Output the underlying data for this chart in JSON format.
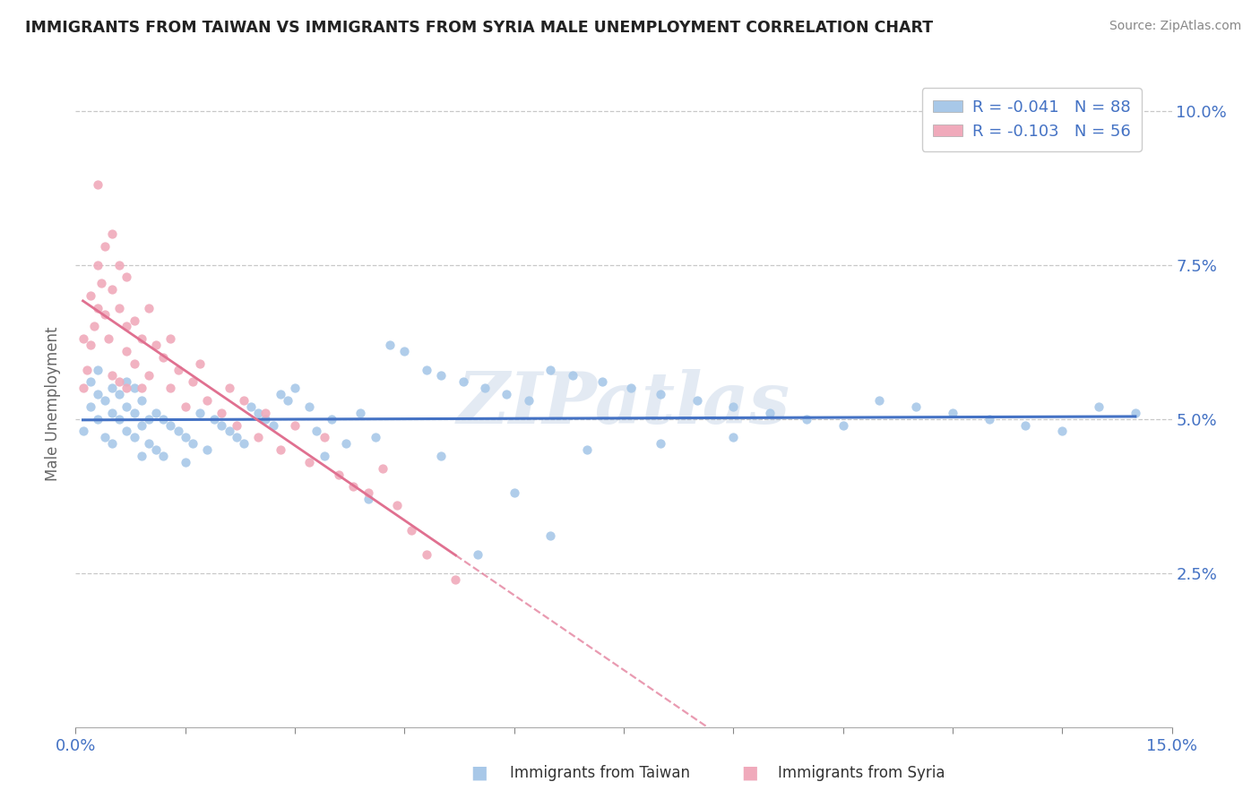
{
  "title": "IMMIGRANTS FROM TAIWAN VS IMMIGRANTS FROM SYRIA MALE UNEMPLOYMENT CORRELATION CHART",
  "source": "Source: ZipAtlas.com",
  "xlabel_taiwan": "Immigrants from Taiwan",
  "xlabel_syria": "Immigrants from Syria",
  "ylabel": "Male Unemployment",
  "xlim": [
    0.0,
    0.15
  ],
  "ylim": [
    0.0,
    0.105
  ],
  "taiwan_R": -0.041,
  "taiwan_N": 88,
  "syria_R": -0.103,
  "syria_N": 56,
  "taiwan_color": "#A8C8E8",
  "syria_color": "#F0AABB",
  "taiwan_line_color": "#4472C4",
  "syria_line_color": "#E07090",
  "watermark": "ZIPatlas",
  "taiwan_x": [
    0.001,
    0.002,
    0.002,
    0.003,
    0.003,
    0.003,
    0.004,
    0.004,
    0.005,
    0.005,
    0.005,
    0.006,
    0.006,
    0.007,
    0.007,
    0.007,
    0.008,
    0.008,
    0.008,
    0.009,
    0.009,
    0.009,
    0.01,
    0.01,
    0.011,
    0.011,
    0.012,
    0.012,
    0.013,
    0.014,
    0.015,
    0.015,
    0.016,
    0.017,
    0.018,
    0.019,
    0.02,
    0.021,
    0.022,
    0.023,
    0.024,
    0.025,
    0.026,
    0.027,
    0.028,
    0.029,
    0.03,
    0.032,
    0.033,
    0.034,
    0.035,
    0.037,
    0.039,
    0.041,
    0.043,
    0.045,
    0.048,
    0.05,
    0.053,
    0.056,
    0.059,
    0.062,
    0.065,
    0.068,
    0.072,
    0.076,
    0.08,
    0.085,
    0.09,
    0.095,
    0.1,
    0.105,
    0.11,
    0.115,
    0.12,
    0.125,
    0.13,
    0.135,
    0.14,
    0.145,
    0.05,
    0.04,
    0.06,
    0.07,
    0.08,
    0.09,
    0.055,
    0.065
  ],
  "taiwan_y": [
    0.048,
    0.052,
    0.056,
    0.05,
    0.054,
    0.058,
    0.047,
    0.053,
    0.046,
    0.051,
    0.055,
    0.05,
    0.054,
    0.048,
    0.052,
    0.056,
    0.047,
    0.051,
    0.055,
    0.049,
    0.053,
    0.044,
    0.05,
    0.046,
    0.051,
    0.045,
    0.05,
    0.044,
    0.049,
    0.048,
    0.043,
    0.047,
    0.046,
    0.051,
    0.045,
    0.05,
    0.049,
    0.048,
    0.047,
    0.046,
    0.052,
    0.051,
    0.05,
    0.049,
    0.054,
    0.053,
    0.055,
    0.052,
    0.048,
    0.044,
    0.05,
    0.046,
    0.051,
    0.047,
    0.062,
    0.061,
    0.058,
    0.057,
    0.056,
    0.055,
    0.054,
    0.053,
    0.058,
    0.057,
    0.056,
    0.055,
    0.054,
    0.053,
    0.052,
    0.051,
    0.05,
    0.049,
    0.053,
    0.052,
    0.051,
    0.05,
    0.049,
    0.048,
    0.052,
    0.051,
    0.044,
    0.037,
    0.038,
    0.045,
    0.046,
    0.047,
    0.028,
    0.031
  ],
  "syria_x": [
    0.001,
    0.001,
    0.0015,
    0.002,
    0.002,
    0.0025,
    0.003,
    0.003,
    0.003,
    0.0035,
    0.004,
    0.004,
    0.0045,
    0.005,
    0.005,
    0.005,
    0.006,
    0.006,
    0.006,
    0.007,
    0.007,
    0.007,
    0.007,
    0.008,
    0.008,
    0.009,
    0.009,
    0.01,
    0.01,
    0.011,
    0.012,
    0.013,
    0.013,
    0.014,
    0.015,
    0.016,
    0.017,
    0.018,
    0.02,
    0.021,
    0.022,
    0.023,
    0.025,
    0.026,
    0.028,
    0.03,
    0.032,
    0.034,
    0.036,
    0.038,
    0.04,
    0.042,
    0.044,
    0.046,
    0.048,
    0.052
  ],
  "syria_y": [
    0.055,
    0.063,
    0.058,
    0.062,
    0.07,
    0.065,
    0.068,
    0.075,
    0.088,
    0.072,
    0.067,
    0.078,
    0.063,
    0.057,
    0.071,
    0.08,
    0.068,
    0.056,
    0.075,
    0.073,
    0.061,
    0.065,
    0.055,
    0.059,
    0.066,
    0.063,
    0.055,
    0.068,
    0.057,
    0.062,
    0.06,
    0.055,
    0.063,
    0.058,
    0.052,
    0.056,
    0.059,
    0.053,
    0.051,
    0.055,
    0.049,
    0.053,
    0.047,
    0.051,
    0.045,
    0.049,
    0.043,
    0.047,
    0.041,
    0.039,
    0.038,
    0.042,
    0.036,
    0.032,
    0.028,
    0.024
  ]
}
